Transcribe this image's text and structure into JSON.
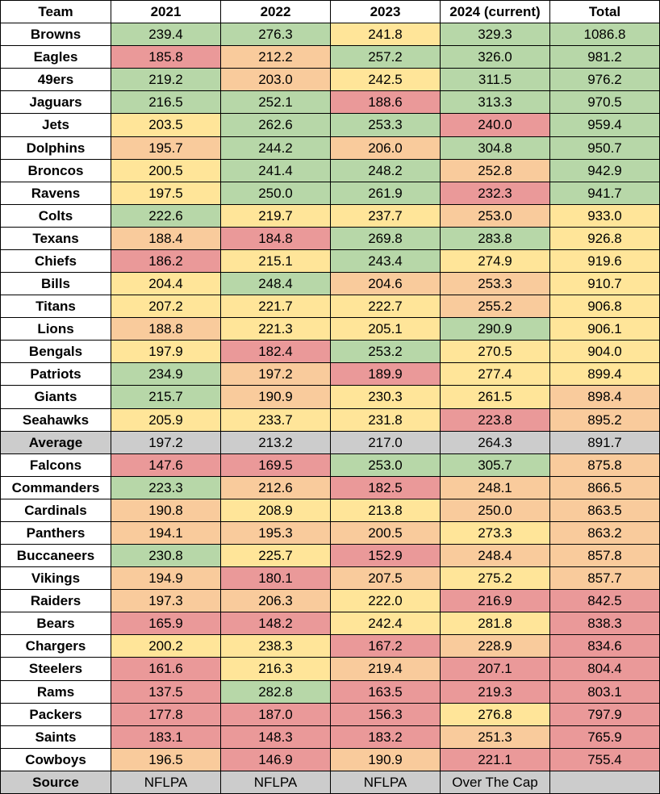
{
  "table": {
    "header": [
      "Team",
      "2021",
      "2022",
      "2023",
      "2024 (current)",
      "Total"
    ],
    "rows": [
      [
        "Browns",
        "239.4",
        "276.3",
        "241.8",
        "329.3",
        "1086.8"
      ],
      [
        "Eagles",
        "185.8",
        "212.2",
        "257.2",
        "326.0",
        "981.2"
      ],
      [
        "49ers",
        "219.2",
        "203.0",
        "242.5",
        "311.5",
        "976.2"
      ],
      [
        "Jaguars",
        "216.5",
        "252.1",
        "188.6",
        "313.3",
        "970.5"
      ],
      [
        "Jets",
        "203.5",
        "262.6",
        "253.3",
        "240.0",
        "959.4"
      ],
      [
        "Dolphins",
        "195.7",
        "244.2",
        "206.0",
        "304.8",
        "950.7"
      ],
      [
        "Broncos",
        "200.5",
        "241.4",
        "248.2",
        "252.8",
        "942.9"
      ],
      [
        "Ravens",
        "197.5",
        "250.0",
        "261.9",
        "232.3",
        "941.7"
      ],
      [
        "Colts",
        "222.6",
        "219.7",
        "237.7",
        "253.0",
        "933.0"
      ],
      [
        "Texans",
        "188.4",
        "184.8",
        "269.8",
        "283.8",
        "926.8"
      ],
      [
        "Chiefs",
        "186.2",
        "215.1",
        "243.4",
        "274.9",
        "919.6"
      ],
      [
        "Bills",
        "204.4",
        "248.4",
        "204.6",
        "253.3",
        "910.7"
      ],
      [
        "Titans",
        "207.2",
        "221.7",
        "222.7",
        "255.2",
        "906.8"
      ],
      [
        "Lions",
        "188.8",
        "221.3",
        "205.1",
        "290.9",
        "906.1"
      ],
      [
        "Bengals",
        "197.9",
        "182.4",
        "253.2",
        "270.5",
        "904.0"
      ],
      [
        "Patriots",
        "234.9",
        "197.2",
        "189.9",
        "277.4",
        "899.4"
      ],
      [
        "Giants",
        "215.7",
        "190.9",
        "230.3",
        "261.5",
        "898.4"
      ],
      [
        "Seahawks",
        "205.9",
        "233.7",
        "231.8",
        "223.8",
        "895.2"
      ],
      [
        "Average",
        "197.2",
        "213.2",
        "217.0",
        "264.3",
        "891.7"
      ],
      [
        "Falcons",
        "147.6",
        "169.5",
        "253.0",
        "305.7",
        "875.8"
      ],
      [
        "Commanders",
        "223.3",
        "212.6",
        "182.5",
        "248.1",
        "866.5"
      ],
      [
        "Cardinals",
        "190.8",
        "208.9",
        "213.8",
        "250.0",
        "863.5"
      ],
      [
        "Panthers",
        "194.1",
        "195.3",
        "200.5",
        "273.3",
        "863.2"
      ],
      [
        "Buccaneers",
        "230.8",
        "225.7",
        "152.9",
        "248.4",
        "857.8"
      ],
      [
        "Vikings",
        "194.9",
        "180.1",
        "207.5",
        "275.2",
        "857.7"
      ],
      [
        "Raiders",
        "197.3",
        "206.3",
        "222.0",
        "216.9",
        "842.5"
      ],
      [
        "Bears",
        "165.9",
        "148.2",
        "242.4",
        "281.8",
        "838.3"
      ],
      [
        "Chargers",
        "200.2",
        "238.3",
        "167.2",
        "228.9",
        "834.6"
      ],
      [
        "Steelers",
        "161.6",
        "216.3",
        "219.4",
        "207.1",
        "804.4"
      ],
      [
        "Rams",
        "137.5",
        "282.8",
        "163.5",
        "219.3",
        "803.1"
      ],
      [
        "Packers",
        "177.8",
        "187.0",
        "156.3",
        "276.8",
        "797.9"
      ],
      [
        "Saints",
        "183.1",
        "148.3",
        "183.2",
        "251.3",
        "765.9"
      ],
      [
        "Cowboys",
        "196.5",
        "146.9",
        "190.9",
        "221.1",
        "755.4"
      ],
      [
        "Source",
        "NFLPA",
        "NFLPA",
        "NFLPA",
        "Over The Cap"
      ]
    ],
    "cell_colors": [
      [
        "#ffffff",
        "#b7d7a8",
        "#b7d7a8",
        "#ffe599",
        "#b7d7a8",
        "#b7d7a8"
      ],
      [
        "#ffffff",
        "#ea9999",
        "#f9cb9c",
        "#b7d7a8",
        "#b7d7a8",
        "#b7d7a8"
      ],
      [
        "#ffffff",
        "#b7d7a8",
        "#f9cb9c",
        "#ffe599",
        "#b7d7a8",
        "#b7d7a8"
      ],
      [
        "#ffffff",
        "#b7d7a8",
        "#b7d7a8",
        "#ea9999",
        "#b7d7a8",
        "#b7d7a8"
      ],
      [
        "#ffffff",
        "#ffe599",
        "#b7d7a8",
        "#b7d7a8",
        "#ea9999",
        "#b7d7a8"
      ],
      [
        "#ffffff",
        "#f9cb9c",
        "#b7d7a8",
        "#f9cb9c",
        "#b7d7a8",
        "#b7d7a8"
      ],
      [
        "#ffffff",
        "#ffe599",
        "#b7d7a8",
        "#b7d7a8",
        "#f9cb9c",
        "#b7d7a8"
      ],
      [
        "#ffffff",
        "#ffe599",
        "#b7d7a8",
        "#b7d7a8",
        "#ea9999",
        "#b7d7a8"
      ],
      [
        "#ffffff",
        "#b7d7a8",
        "#ffe599",
        "#ffe599",
        "#f9cb9c",
        "#ffe599"
      ],
      [
        "#ffffff",
        "#f9cb9c",
        "#ea9999",
        "#b7d7a8",
        "#b7d7a8",
        "#ffe599"
      ],
      [
        "#ffffff",
        "#ea9999",
        "#ffe599",
        "#b7d7a8",
        "#ffe599",
        "#ffe599"
      ],
      [
        "#ffffff",
        "#ffe599",
        "#b7d7a8",
        "#f9cb9c",
        "#f9cb9c",
        "#ffe599"
      ],
      [
        "#ffffff",
        "#ffe599",
        "#ffe599",
        "#ffe599",
        "#f9cb9c",
        "#ffe599"
      ],
      [
        "#ffffff",
        "#f9cb9c",
        "#ffe599",
        "#ffe599",
        "#b7d7a8",
        "#ffe599"
      ],
      [
        "#ffffff",
        "#ffe599",
        "#ea9999",
        "#b7d7a8",
        "#ffe599",
        "#ffe599"
      ],
      [
        "#ffffff",
        "#b7d7a8",
        "#f9cb9c",
        "#ea9999",
        "#ffe599",
        "#ffe599"
      ],
      [
        "#ffffff",
        "#b7d7a8",
        "#f9cb9c",
        "#ffe599",
        "#ffe599",
        "#f9cb9c"
      ],
      [
        "#ffffff",
        "#ffe599",
        "#ffe599",
        "#ffe599",
        "#ea9999",
        "#f9cb9c"
      ],
      [
        "#cccccc",
        "#cccccc",
        "#cccccc",
        "#cccccc",
        "#cccccc",
        "#cccccc"
      ],
      [
        "#ffffff",
        "#ea9999",
        "#ea9999",
        "#b7d7a8",
        "#b7d7a8",
        "#f9cb9c"
      ],
      [
        "#ffffff",
        "#b7d7a8",
        "#f9cb9c",
        "#ea9999",
        "#f9cb9c",
        "#f9cb9c"
      ],
      [
        "#ffffff",
        "#f9cb9c",
        "#ffe599",
        "#ffe599",
        "#f9cb9c",
        "#f9cb9c"
      ],
      [
        "#ffffff",
        "#f9cb9c",
        "#f9cb9c",
        "#f9cb9c",
        "#ffe599",
        "#f9cb9c"
      ],
      [
        "#ffffff",
        "#b7d7a8",
        "#ffe599",
        "#ea9999",
        "#f9cb9c",
        "#f9cb9c"
      ],
      [
        "#ffffff",
        "#f9cb9c",
        "#ea9999",
        "#f9cb9c",
        "#ffe599",
        "#f9cb9c"
      ],
      [
        "#ffffff",
        "#f9cb9c",
        "#f9cb9c",
        "#ffe599",
        "#ea9999",
        "#ea9999"
      ],
      [
        "#ffffff",
        "#ea9999",
        "#ea9999",
        "#ffe599",
        "#ffe599",
        "#ea9999"
      ],
      [
        "#ffffff",
        "#ffe599",
        "#ffe599",
        "#ea9999",
        "#f9cb9c",
        "#ea9999"
      ],
      [
        "#ffffff",
        "#ea9999",
        "#ffe599",
        "#f9cb9c",
        "#ea9999",
        "#ea9999"
      ],
      [
        "#ffffff",
        "#ea9999",
        "#b7d7a8",
        "#ea9999",
        "#ea9999",
        "#ea9999"
      ],
      [
        "#ffffff",
        "#ea9999",
        "#ea9999",
        "#ea9999",
        "#ffe599",
        "#ea9999"
      ],
      [
        "#ffffff",
        "#ea9999",
        "#ea9999",
        "#ea9999",
        "#f9cb9c",
        "#ea9999"
      ],
      [
        "#ffffff",
        "#f9cb9c",
        "#ea9999",
        "#f9cb9c",
        "#ea9999",
        "#ea9999"
      ],
      [
        "#cccccc",
        "#cccccc",
        "#cccccc",
        "#cccccc",
        "#cccccc",
        "#cccccc"
      ]
    ]
  }
}
